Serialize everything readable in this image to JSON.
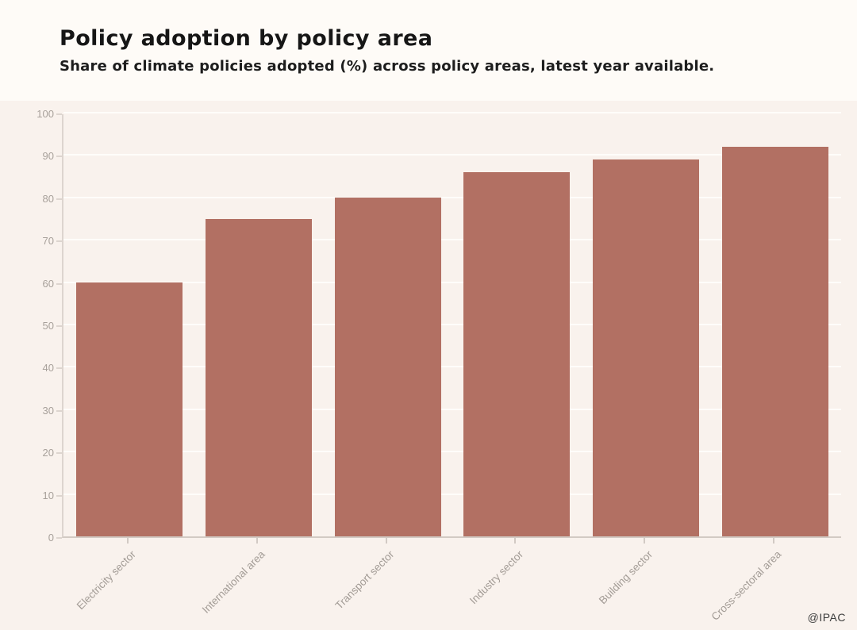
{
  "header": {
    "title": "Policy adoption by policy area",
    "subtitle": "Share of climate policies adopted (%) across policy areas, latest year available."
  },
  "watermark": "@IPAC",
  "chart_data": {
    "type": "bar",
    "categories": [
      "Electricity sector",
      "International area",
      "Transport sector",
      "Industry sector",
      "Building sector",
      "Cross-sectoral area"
    ],
    "values": [
      60,
      75,
      80,
      86,
      89,
      92
    ],
    "title": "Policy adoption by policy area",
    "subtitle": "Share of climate policies adopted (%) across policy areas, latest year available.",
    "xlabel": "",
    "ylabel": "",
    "ylim": [
      0,
      100
    ],
    "yticks": [
      0,
      10,
      20,
      30,
      40,
      50,
      60,
      70,
      80,
      90,
      100
    ],
    "grid": true,
    "legend": "none",
    "bar_color": "#b27063",
    "plot_background": "#f9f2ed",
    "header_background": "#fefbf7",
    "grid_color": "#fffdfa"
  }
}
